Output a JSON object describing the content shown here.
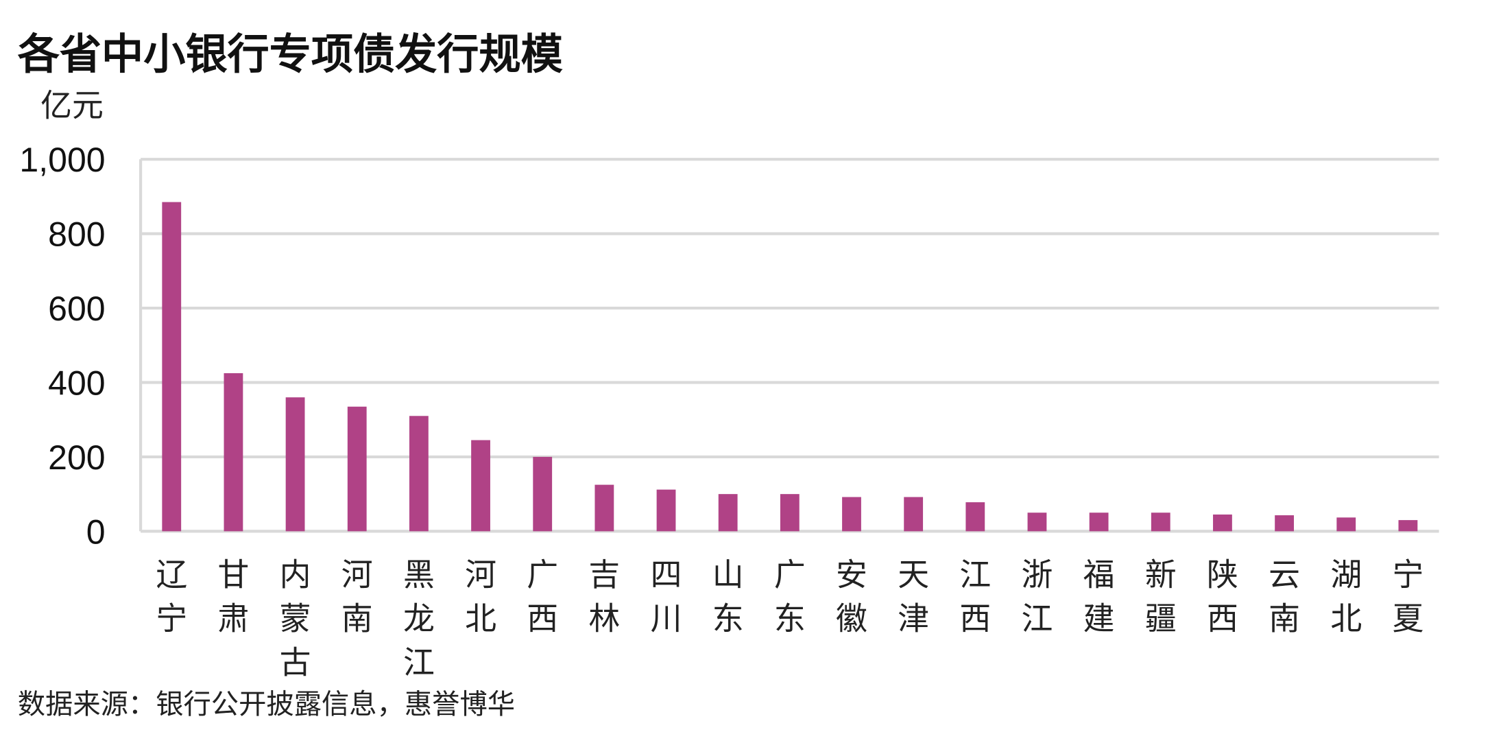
{
  "chart_data": {
    "type": "bar",
    "title": "各省中小银行专项债发行规模",
    "ylabel": "亿元",
    "xlabel": "",
    "ylim": [
      0,
      1000
    ],
    "yticks": [
      "0",
      "200",
      "400",
      "600",
      "800",
      "1,000"
    ],
    "ytick_values": [
      0,
      200,
      400,
      600,
      800,
      1000
    ],
    "grid": true,
    "bar_color": "#b04286",
    "categories": [
      "辽宁",
      "甘肃",
      "内蒙古",
      "河南",
      "黑龙江",
      "河北",
      "广西",
      "吉林",
      "四川",
      "山东",
      "广东",
      "安徽",
      "天津",
      "江西",
      "浙江",
      "福建",
      "新疆",
      "陕西",
      "云南",
      "湖北",
      "宁夏"
    ],
    "values": [
      885,
      425,
      360,
      335,
      310,
      245,
      200,
      125,
      112,
      100,
      100,
      92,
      92,
      78,
      50,
      50,
      50,
      45,
      43,
      37,
      30
    ]
  },
  "source_note": "数据来源：银行公开披露信息，惠誉博华"
}
